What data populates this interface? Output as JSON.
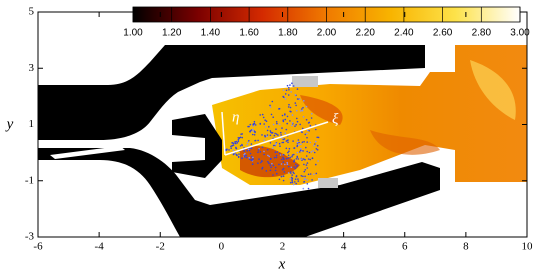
{
  "chart_data": {
    "type": "contour",
    "xlabel": "x",
    "ylabel": "y",
    "xlim": [
      -6,
      10
    ],
    "xticks": [
      -6,
      -4,
      -2,
      0,
      2,
      4,
      6,
      8,
      10
    ],
    "ylim": [
      -3,
      5
    ],
    "yticks": [
      -3,
      -1,
      1,
      3,
      5
    ],
    "colorbar": {
      "lim": [
        1,
        3
      ],
      "ticks": [
        {
          "value": 1,
          "label": "1.00"
        },
        {
          "value": 1.2,
          "label": "1.20"
        },
        {
          "value": 1.4,
          "label": "1.40"
        },
        {
          "value": 1.6,
          "label": "1.60"
        },
        {
          "value": 1.8,
          "label": "1.80"
        },
        {
          "value": 2,
          "label": "2.00"
        },
        {
          "value": 2.2,
          "label": "2.20"
        },
        {
          "value": 2.4,
          "label": "2.40"
        },
        {
          "value": 2.6,
          "label": "2.60"
        },
        {
          "value": 2.8,
          "label": "2.80"
        },
        {
          "value": 3,
          "label": "3.00"
        }
      ],
      "colors": [
        "#000000",
        "#7a0000",
        "#d42a00",
        "#f07a00",
        "#f8b400",
        "#fde24a",
        "#ffffff"
      ]
    },
    "annotations": [
      "η",
      "ξ"
    ]
  }
}
